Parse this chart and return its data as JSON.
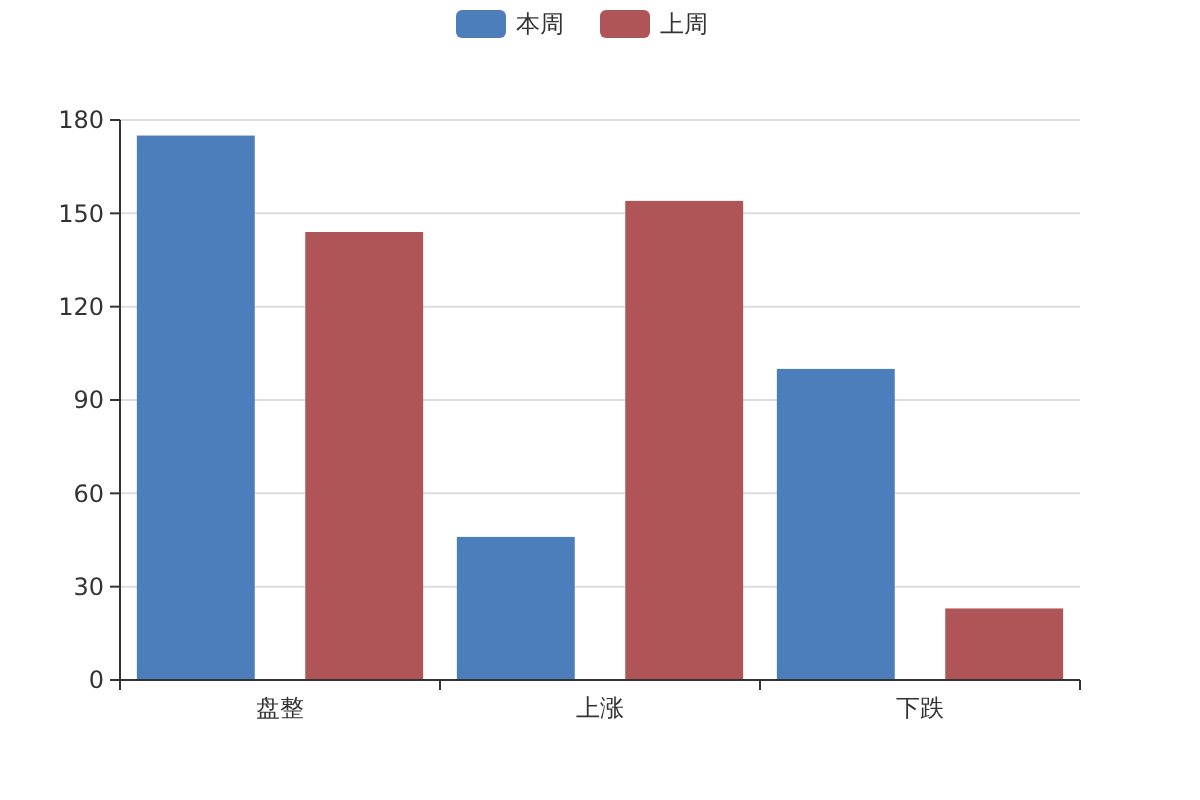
{
  "chart_data": {
    "type": "bar",
    "categories": [
      "盘整",
      "上涨",
      "下跌"
    ],
    "series": [
      {
        "name": "本周",
        "color": "#4c7ebb",
        "values": [
          175,
          46,
          100
        ]
      },
      {
        "name": "上周",
        "color": "#b05557",
        "values": [
          144,
          154,
          23
        ]
      }
    ],
    "ylim": [
      0,
      180
    ],
    "yticks": [
      0,
      30,
      60,
      90,
      120,
      150,
      180
    ],
    "grid": "y",
    "legend": "top"
  }
}
